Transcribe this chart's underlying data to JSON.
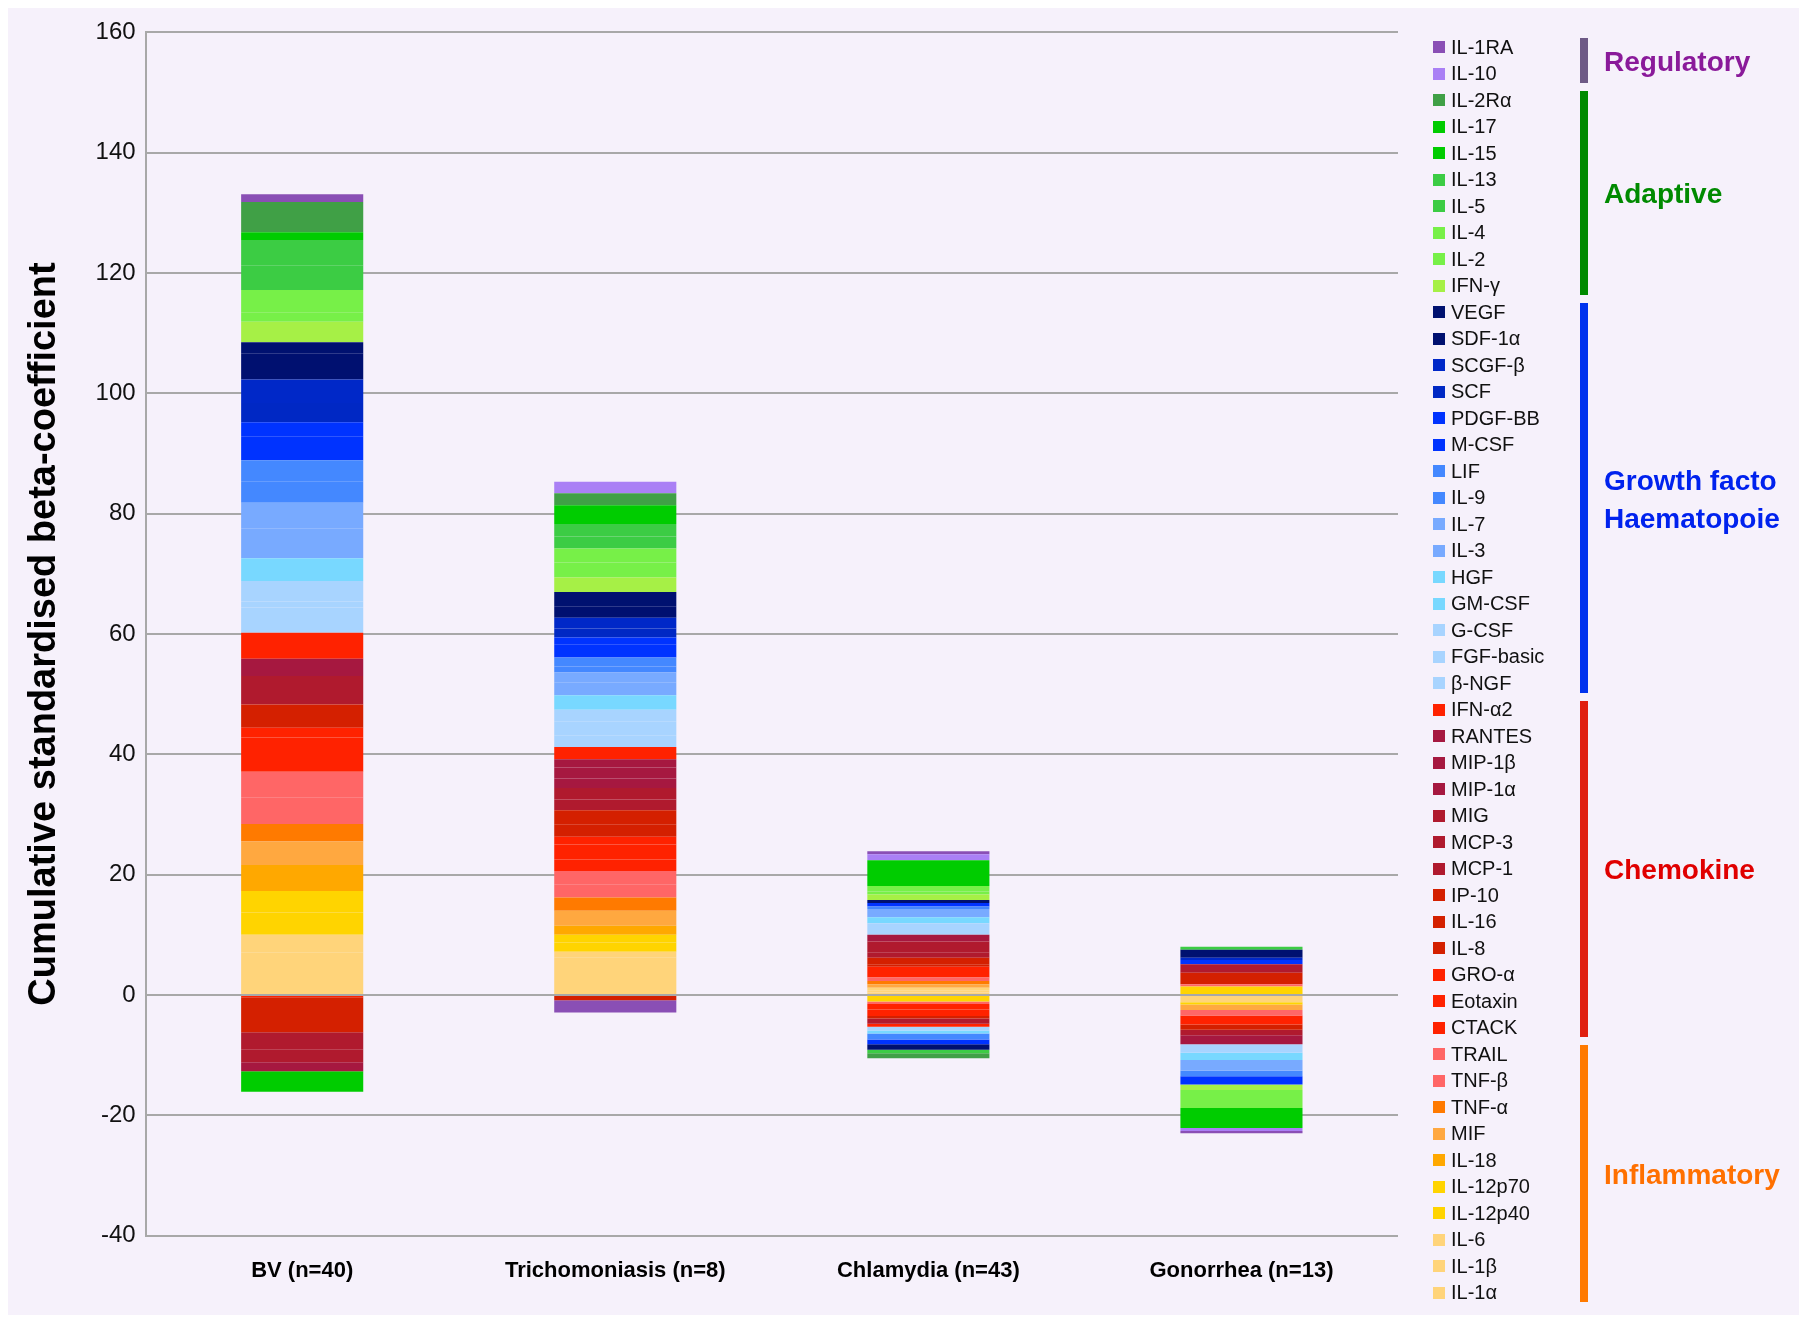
{
  "chart_data": {
    "type": "bar",
    "stacked": true,
    "ylabel": "Cumulative standardised beta-coefficient",
    "categories": [
      "BV (n=40)",
      "Trichomoniasis (n=8)",
      "Chlamydia (n=43)",
      "Gonorrhea (n=13)"
    ],
    "ylim": [
      -40,
      160
    ],
    "yticks": [
      -40,
      -20,
      0,
      20,
      40,
      60,
      80,
      100,
      120,
      140,
      160
    ],
    "grid": "y",
    "legend": "right",
    "annotations": [
      "Regulatory",
      "Adaptive",
      "Growth facto\nHaematopoie",
      "Chemokine",
      "Inflammatory"
    ],
    "series": [
      {
        "name": "IL-1α",
        "color": "#ffd47a",
        "values": [
          3.5,
          3.0,
          0.4,
          null
        ]
      },
      {
        "name": "IL-1β",
        "color": "#ffd47a",
        "values": [
          3.6,
          3.2,
          0.3,
          null
        ]
      },
      {
        "name": "IL-6",
        "color": "#ffd47a",
        "values": [
          2.9,
          1.0,
          0.5,
          -1.2
        ]
      },
      {
        "name": "IL-12p40",
        "color": "#ffd400",
        "values": [
          3.7,
          1.5,
          -1.1,
          -0.4
        ]
      },
      {
        "name": "IL-12p70",
        "color": "#ffd400",
        "values": [
          3.6,
          1.3,
          null,
          1.4
        ]
      },
      {
        "name": "IL-18",
        "color": "#ffa800",
        "values": [
          4.3,
          1.5,
          null,
          null
        ]
      },
      {
        "name": "MIF",
        "color": "#ffa840",
        "values": [
          3.9,
          2.5,
          0.6,
          -0.9
        ]
      },
      {
        "name": "TNF-α",
        "color": "#ff7a00",
        "values": [
          2.9,
          2.2,
          0.5,
          null
        ]
      },
      {
        "name": "TNF-β",
        "color": "#ff6666",
        "values": [
          4.4,
          2.1,
          -0.4,
          0.4
        ]
      },
      {
        "name": "TRAIL",
        "color": "#ff6666",
        "values": [
          4.3,
          2.3,
          0.6,
          -0.9
        ]
      },
      {
        "name": "CTACK",
        "color": "#ff2200",
        "values": [
          -0.4,
          1.9,
          -0.9,
          null
        ]
      },
      {
        "name": "Eotaxin",
        "color": "#ff2200",
        "values": [
          5.7,
          2.5,
          -1.1,
          -1.5
        ]
      },
      {
        "name": "GRO-α",
        "color": "#ff2200",
        "values": [
          1.6,
          1.3,
          1.8,
          null
        ]
      },
      {
        "name": "IL-8",
        "color": "#d42000",
        "values": [
          -5.8,
          -0.9,
          0.4,
          -0.9
        ]
      },
      {
        "name": "IL-16",
        "color": "#d42000",
        "values": [
          3.9,
          2.0,
          1.1,
          1.9
        ]
      },
      {
        "name": "IP-10",
        "color": "#d42000",
        "values": [
          null,
          2.4,
          -0.4,
          null
        ]
      },
      {
        "name": "MCP-1",
        "color": "#b01a2e",
        "values": [
          -2.9,
          null,
          0.9,
          -0.9
        ]
      },
      {
        "name": "MCP-3",
        "color": "#b01a2e",
        "values": [
          -2.1,
          1.8,
          -0.9,
          null
        ]
      },
      {
        "name": "MIG",
        "color": "#b01a2e",
        "values": [
          4.7,
          1.9,
          1.8,
          1.4
        ]
      },
      {
        "name": "MIP-1α",
        "color": "#a61840",
        "values": [
          null,
          1.6,
          null,
          -1.5
        ]
      },
      {
        "name": "MIP-1β",
        "color": "#a61840",
        "values": [
          -1.5,
          1.8,
          null,
          null
        ]
      },
      {
        "name": "RANTES",
        "color": "#a61840",
        "values": [
          2.9,
          1.4,
          1.1,
          null
        ]
      },
      {
        "name": "IFN-α2",
        "color": "#ff2200",
        "values": [
          4.3,
          2.0,
          -0.5,
          null
        ]
      },
      {
        "name": "β-NGF",
        "color": "#a8d4ff",
        "values": [
          4.2,
          1.9,
          1.9,
          null
        ]
      },
      {
        "name": "FGF-basic",
        "color": "#a8d4ff",
        "values": [
          1.0,
          2.3,
          -0.6,
          -1.4
        ]
      },
      {
        "name": "G-CSF",
        "color": "#a8d4ff",
        "values": [
          3.4,
          2.0,
          null,
          null
        ]
      },
      {
        "name": "GM-CSF",
        "color": "#78d8ff",
        "values": [
          1.0,
          null,
          -0.5,
          -1.2
        ]
      },
      {
        "name": "HGF",
        "color": "#78d8ff",
        "values": [
          2.8,
          2.4,
          1.0,
          null
        ]
      },
      {
        "name": "IL-3",
        "color": "#78aaff",
        "values": [
          4.9,
          2.1,
          null,
          -1.8
        ]
      },
      {
        "name": "IL-7",
        "color": "#78aaff",
        "values": [
          4.3,
          1.7,
          1.4,
          null
        ]
      },
      {
        "name": "IL-9",
        "color": "#4488ff",
        "values": [
          3.5,
          1.0,
          -1.0,
          null
        ]
      },
      {
        "name": "LIF",
        "color": "#4488ff",
        "values": [
          3.6,
          1.5,
          0.4,
          -0.9
        ]
      },
      {
        "name": "M-CSF",
        "color": "#0033ff",
        "values": [
          3.9,
          2.2,
          -0.8,
          -1.4
        ]
      },
      {
        "name": "PDGF-BB",
        "color": "#0033ff",
        "values": [
          2.4,
          1.1,
          0.6,
          0.7
        ]
      },
      {
        "name": "SCF",
        "color": "#0028c4",
        "values": [
          3.2,
          1.5,
          null,
          null
        ]
      },
      {
        "name": "SCGF-β",
        "color": "#0028c8",
        "values": [
          3.9,
          1.8,
          null,
          0.4
        ]
      },
      {
        "name": "SDF-1α",
        "color": "#001070",
        "values": [
          4.3,
          1.9,
          -0.9,
          null
        ]
      },
      {
        "name": "VEGF",
        "color": "#001170",
        "values": [
          1.9,
          2.4,
          0.5,
          1.3
        ]
      },
      {
        "name": "IFN-γ",
        "color": "#a6f046",
        "values": [
          3.4,
          2.4,
          0.9,
          -0.9
        ]
      },
      {
        "name": "IL-2",
        "color": "#77f048",
        "values": [
          1.5,
          2.5,
          0.5,
          null
        ]
      },
      {
        "name": "IL-4",
        "color": "#77f048",
        "values": [
          3.8,
          2.3,
          0.9,
          -3.0
        ]
      },
      {
        "name": "IL-5",
        "color": "#3ccc44",
        "values": [
          4.1,
          2.0,
          null,
          null
        ]
      },
      {
        "name": "IL-13",
        "color": "#3ccc44",
        "values": [
          4.2,
          2.1,
          -0.6,
          0.5
        ]
      },
      {
        "name": "IL-15",
        "color": "#00cc00",
        "values": [
          1.3,
          null,
          null,
          -1.5
        ]
      },
      {
        "name": "IL-17",
        "color": "#00cc00",
        "values": [
          -3.4,
          3.1,
          4.3,
          -1.8
        ]
      },
      {
        "name": "IL-2Rα",
        "color": "#40a046",
        "values": [
          5.0,
          2.0,
          -0.8,
          null
        ]
      },
      {
        "name": "IL-10",
        "color": "#aa80f5",
        "values": [
          null,
          1.9,
          1.0,
          -0.5
        ]
      },
      {
        "name": "IL-1RA",
        "color": "#8a4fb5",
        "values": [
          1.3,
          -2.0,
          0.5,
          -0.4
        ]
      }
    ]
  }
}
